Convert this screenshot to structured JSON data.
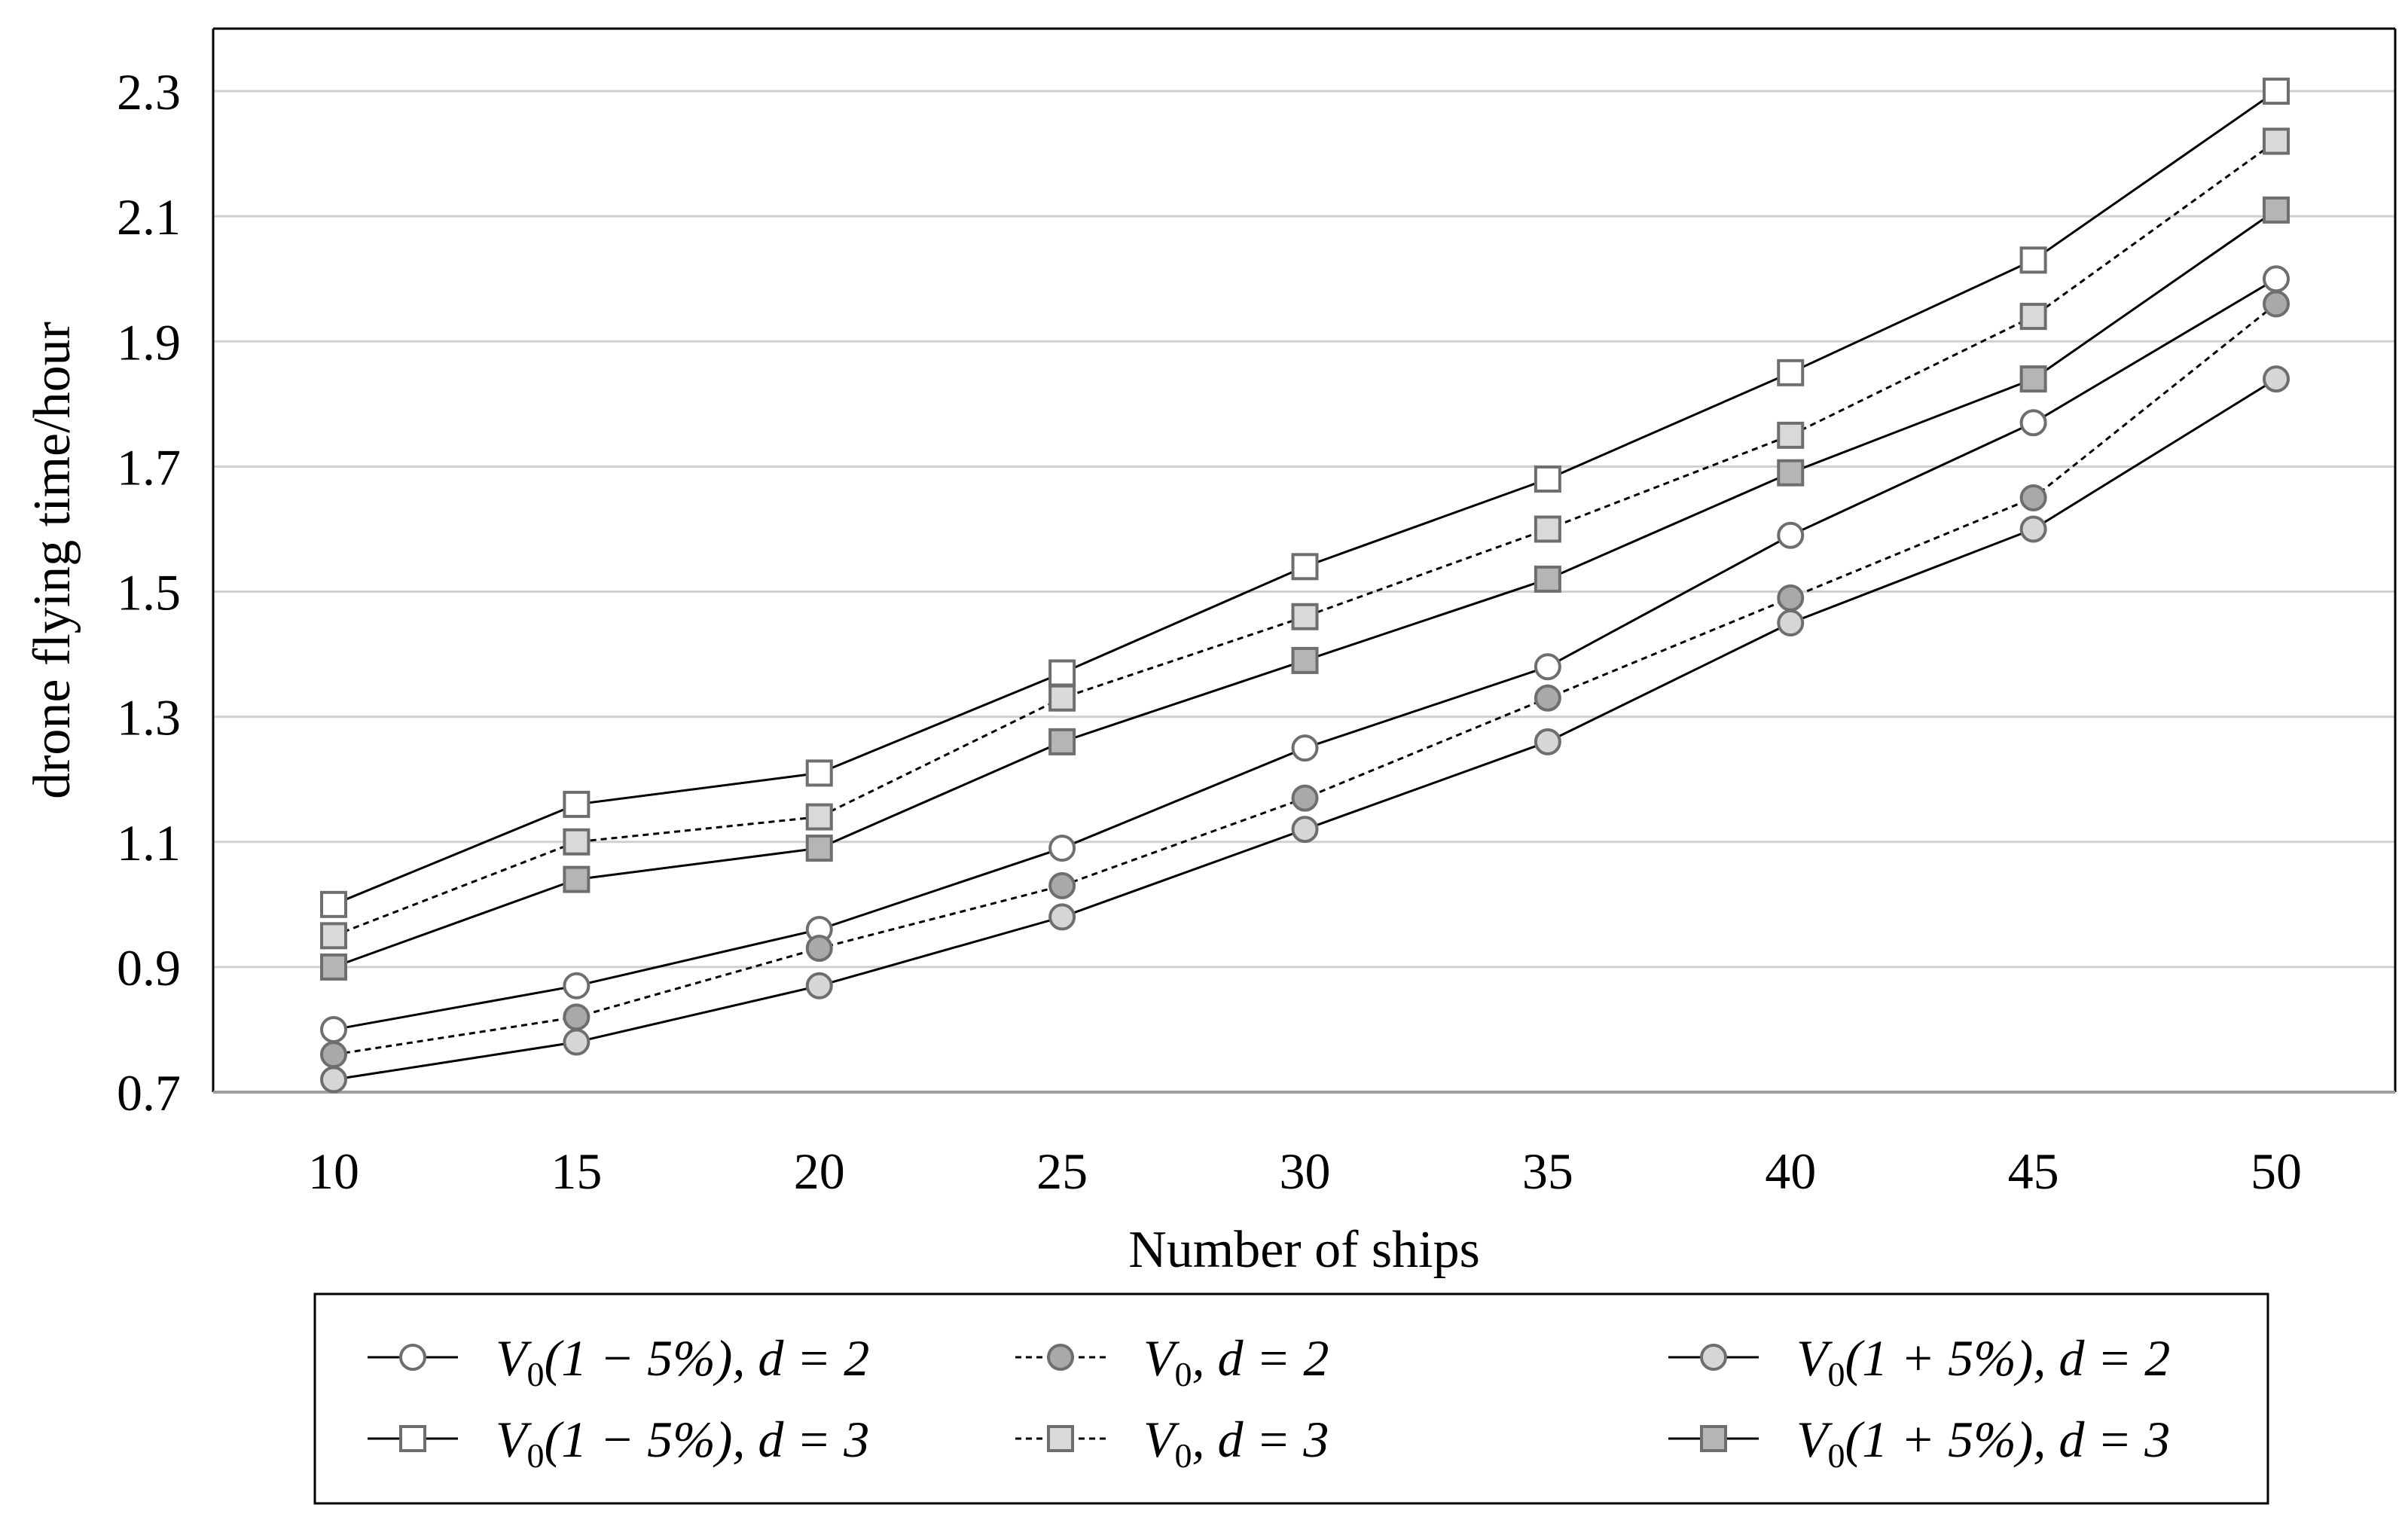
{
  "chart_data": {
    "type": "line",
    "xlabel": "Number of ships",
    "ylabel": "drone flying time/hour",
    "x": [
      10,
      15,
      20,
      25,
      30,
      35,
      40,
      45,
      50
    ],
    "x_tick_labels": [
      "10",
      "15",
      "20",
      "25",
      "30",
      "35",
      "40",
      "45",
      "50"
    ],
    "ylim": [
      0.7,
      2.4
    ],
    "y_ticks": [
      0.7,
      0.9,
      1.1,
      1.3,
      1.5,
      1.7,
      1.9,
      2.1,
      2.3
    ],
    "y_tick_labels": [
      "0.7",
      "0.9",
      "1.1",
      "1.3",
      "1.5",
      "1.7",
      "1.9",
      "2.1",
      "2.3"
    ],
    "grid": "horizontal",
    "legend_position": "bottom",
    "series": [
      {
        "name": "V0(1 − 5%), d = 2",
        "marker": "circle",
        "fill": "#ffffff",
        "line": "solid",
        "values": [
          0.8,
          0.87,
          0.96,
          1.09,
          1.25,
          1.38,
          1.59,
          1.77,
          2.0
        ]
      },
      {
        "name": "V0, d = 2",
        "marker": "circle",
        "fill": "#a9a9a9",
        "line": "dotted",
        "values": [
          0.76,
          0.82,
          0.93,
          1.03,
          1.17,
          1.33,
          1.49,
          1.65,
          1.96
        ]
      },
      {
        "name": "V0(1 + 5%), d = 2",
        "marker": "circle",
        "fill": "#d6d6d6",
        "line": "solid",
        "values": [
          0.72,
          0.78,
          0.87,
          0.98,
          1.12,
          1.26,
          1.45,
          1.6,
          1.84
        ]
      },
      {
        "name": "V0(1 − 5%), d = 3",
        "marker": "square",
        "fill": "#ffffff",
        "line": "solid",
        "values": [
          1.0,
          1.16,
          1.21,
          1.37,
          1.54,
          1.68,
          1.85,
          2.03,
          2.3
        ]
      },
      {
        "name": "V0, d = 3",
        "marker": "square",
        "fill": "#d9d9d9",
        "line": "dotted",
        "values": [
          0.95,
          1.1,
          1.14,
          1.33,
          1.46,
          1.6,
          1.75,
          1.94,
          2.22
        ]
      },
      {
        "name": "V0(1 + 5%), d = 3",
        "marker": "square",
        "fill": "#b5b5b5",
        "line": "solid",
        "values": [
          0.9,
          1.04,
          1.09,
          1.26,
          1.39,
          1.52,
          1.69,
          1.84,
          2.11
        ]
      }
    ],
    "legend": {
      "items": [
        {
          "series": 0,
          "base": "V",
          "sub": "0",
          "rest": "(1 − 5%), d = 2"
        },
        {
          "series": 1,
          "base": "V",
          "sub": "0",
          "rest": ", d = 2"
        },
        {
          "series": 2,
          "base": "V",
          "sub": "0",
          "rest": "(1 + 5%), d = 2"
        },
        {
          "series": 3,
          "base": "V",
          "sub": "0",
          "rest": "(1 − 5%), d = 3"
        },
        {
          "series": 4,
          "base": "V",
          "sub": "0",
          "rest": ", d = 3"
        },
        {
          "series": 5,
          "base": "V",
          "sub": "0",
          "rest": "(1 + 5%), d = 3"
        }
      ]
    }
  }
}
